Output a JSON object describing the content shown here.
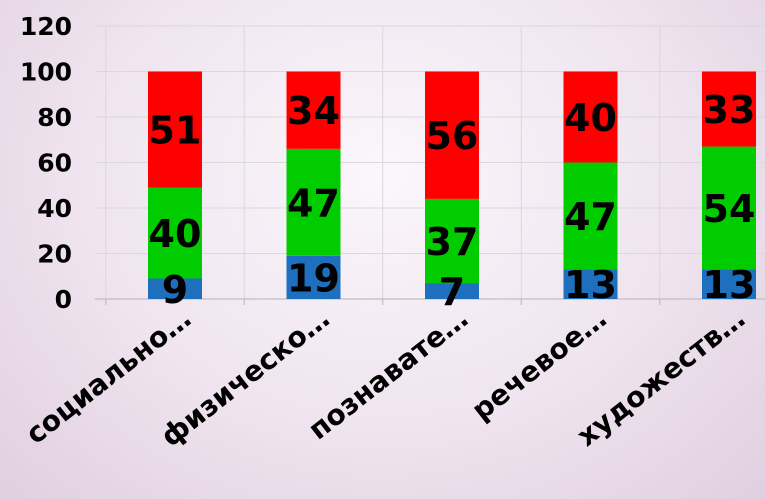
{
  "chart_data": {
    "type": "bar",
    "stacked": true,
    "title": "",
    "xlabel": "",
    "ylabel": "",
    "ylim": [
      0,
      120
    ],
    "yticks": [
      0,
      20,
      40,
      60,
      80,
      100,
      120
    ],
    "grid": true,
    "legend": "none",
    "categories": [
      "социально…",
      "физическо…",
      "познавате…",
      "речевое…",
      "художеств…"
    ],
    "series": [
      {
        "values": [
          9,
          19,
          7,
          13,
          13
        ],
        "color": "#1f6fbf"
      },
      {
        "values": [
          40,
          47,
          37,
          47,
          54
        ],
        "color": "#00cc00"
      },
      {
        "values": [
          51,
          34,
          56,
          40,
          33
        ],
        "color": "#ff0000"
      }
    ]
  }
}
